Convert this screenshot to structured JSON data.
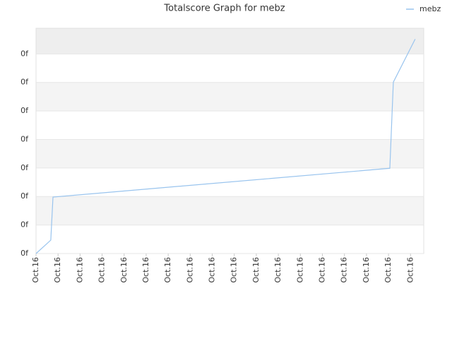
{
  "chart_data": {
    "type": "line",
    "title": "Totalscore Graph for mebz",
    "x": [
      0,
      0.67,
      0.77,
      16.06,
      16.22,
      17.21
    ],
    "series": [
      {
        "name": "mebz",
        "color": "#99c4ee",
        "values": [
          0,
          0.47,
          1.98,
          2.99,
          6.01,
          7.52
        ]
      }
    ],
    "xlim": [
      0,
      17.6
    ],
    "ylim": [
      0,
      7.9
    ],
    "xticks": [
      {
        "value": 0,
        "label": "Oct.16"
      },
      {
        "value": 1,
        "label": "Oct.16"
      },
      {
        "value": 2,
        "label": "Oct.16"
      },
      {
        "value": 3,
        "label": "Oct.16"
      },
      {
        "value": 4,
        "label": "Oct.16"
      },
      {
        "value": 5,
        "label": "Oct.16"
      },
      {
        "value": 6,
        "label": "Oct.16"
      },
      {
        "value": 7,
        "label": "Oct.16"
      },
      {
        "value": 8,
        "label": "Oct.16"
      },
      {
        "value": 9,
        "label": "Oct.16"
      },
      {
        "value": 10,
        "label": "Oct.16"
      },
      {
        "value": 11,
        "label": "Oct.16"
      },
      {
        "value": 12,
        "label": "Oct.16"
      },
      {
        "value": 13,
        "label": "Oct.16"
      },
      {
        "value": 14,
        "label": "Oct.16"
      },
      {
        "value": 15,
        "label": "Oct.16"
      },
      {
        "value": 16,
        "label": "Oct.16"
      },
      {
        "value": 17,
        "label": "Oct.16"
      }
    ],
    "yticks": [
      {
        "value": 0,
        "label": "0f"
      },
      {
        "value": 1,
        "label": "0f"
      },
      {
        "value": 2,
        "label": "0f"
      },
      {
        "value": 3,
        "label": "0f"
      },
      {
        "value": 4,
        "label": "0f"
      },
      {
        "value": 5,
        "label": "0f"
      },
      {
        "value": 6,
        "label": "0f"
      },
      {
        "value": 7,
        "label": "0f"
      }
    ],
    "grid": true,
    "legend": "top-right"
  }
}
